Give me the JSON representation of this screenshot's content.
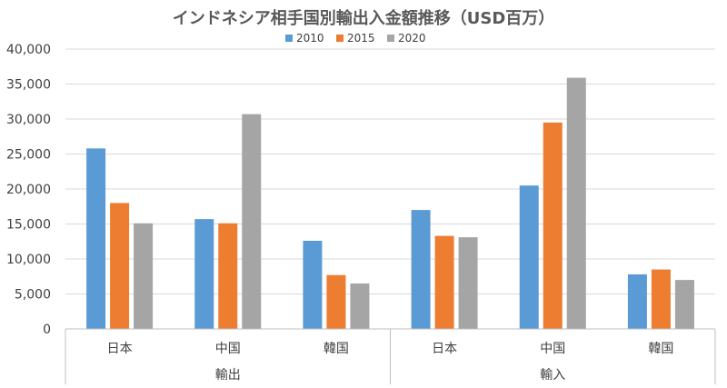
{
  "chart_data": {
    "type": "bar",
    "title": "インドネシア相手国別輸出入金額推移（USD百万）",
    "xlabel": "",
    "ylabel": "",
    "ylim": [
      0,
      40000
    ],
    "yticks": [
      0,
      5000,
      10000,
      15000,
      20000,
      25000,
      30000,
      35000,
      40000
    ],
    "ytick_labels": [
      "0",
      "5,000",
      "10,000",
      "15,000",
      "20,000",
      "25,000",
      "30,000",
      "35,000",
      "40,000"
    ],
    "grid": true,
    "legend_position": "top-center",
    "groups": [
      {
        "label": "輸出",
        "categories": [
          "日本",
          "中国",
          "韓国"
        ]
      },
      {
        "label": "輸入",
        "categories": [
          "日本",
          "中国",
          "韓国"
        ]
      }
    ],
    "categories": [
      "日本",
      "中国",
      "韓国",
      "日本",
      "中国",
      "韓国"
    ],
    "series": [
      {
        "name": "2010",
        "color": "#5B9BD5",
        "values": [
          25800,
          15700,
          12600,
          17000,
          20500,
          7800
        ]
      },
      {
        "name": "2015",
        "color": "#ED7D31",
        "values": [
          18000,
          15100,
          7700,
          13300,
          29500,
          8500
        ]
      },
      {
        "name": "2020",
        "color": "#A5A5A5",
        "values": [
          15100,
          30700,
          6500,
          13100,
          35900,
          7000
        ]
      }
    ]
  }
}
